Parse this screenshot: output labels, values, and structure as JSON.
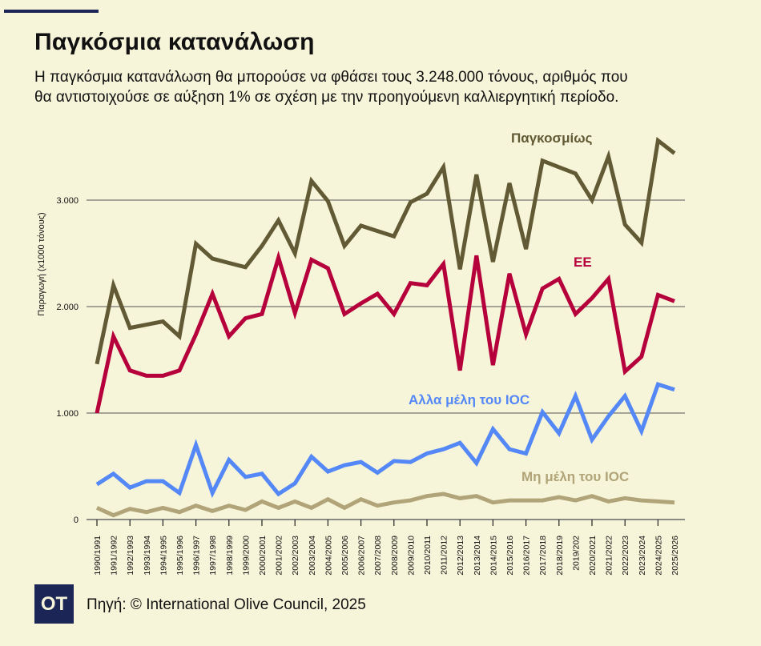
{
  "header": {
    "title": "Παγκόσμια κατανάλωση",
    "subtitle": "Η παγκόσμια κατανάλωση θα μπορούσε να φθάσει τους 3.248.000 τόνους, αριθμός που θα αντιστοιχούσε σε αύξηση 1% σε σχέση με την προηγούμενη καλλιεργητική περίοδο."
  },
  "footer": {
    "logo": "OT",
    "source": "Πηγή: © International Olive Council, 2025"
  },
  "colors": {
    "background": "#f6f4d9",
    "brand": "#1b2556",
    "world": "#625a34",
    "eu": "#b5003b",
    "other_ioc": "#5588f7",
    "non_ioc": "#b0a478",
    "grid": "#555555"
  },
  "chart_data": {
    "type": "line",
    "title": "Παγκόσμια κατανάλωση",
    "xlabel": "",
    "ylabel": "Παραγωγή (x1000 τόνους)",
    "ylim": [
      0,
      3700
    ],
    "yticks": [
      0,
      1000,
      2000,
      3000
    ],
    "ytick_labels": [
      "0",
      "1.000",
      "2.000",
      "3.000"
    ],
    "grid": true,
    "categories": [
      "1990/1991",
      "1991/1992",
      "1992/1993",
      "1993/1994",
      "1994/1995",
      "1995/1996",
      "1996/1997",
      "1997/1998",
      "1998/1999",
      "1999/2000",
      "2000/2001",
      "2001/2002",
      "2002/2003",
      "2003/2004",
      "2004/2005",
      "2005/2006",
      "2006/2007",
      "2007/2008",
      "2008/2009",
      "2009/2010",
      "2010/2011",
      "2011/2012",
      "2012/2013",
      "2013/2014",
      "2014/2015",
      "2015/2016",
      "2016/2017",
      "2017/2018",
      "2018/2019",
      "2019/202",
      "2020/2021",
      "2021/2022",
      "2022/2023",
      "2023/2024",
      "2024/2025",
      "2025/2026"
    ],
    "series": [
      {
        "key": "world",
        "name": "Παγκοσμίως",
        "values": [
          1460,
          2200,
          1800,
          1830,
          1860,
          1720,
          2590,
          2450,
          2410,
          2370,
          2570,
          2810,
          2500,
          3180,
          2990,
          2570,
          2760,
          2710,
          2660,
          2980,
          3060,
          3310,
          2350,
          3240,
          2420,
          3160,
          2540,
          3370,
          3310,
          3250,
          3000,
          3410,
          2770,
          2600,
          3560,
          3440
        ]
      },
      {
        "key": "eu",
        "name": "ΕΕ",
        "values": [
          1000,
          1720,
          1400,
          1350,
          1350,
          1400,
          1740,
          2120,
          1720,
          1890,
          1930,
          2460,
          1940,
          2440,
          2360,
          1930,
          2030,
          2120,
          1930,
          2220,
          2200,
          2400,
          1400,
          2480,
          1450,
          2310,
          1740,
          2170,
          2260,
          1930,
          2080,
          2260,
          1390,
          1530,
          2110,
          2050
        ]
      },
      {
        "key": "other_ioc",
        "name": "Αλλα μέλη του IOC",
        "values": [
          330,
          430,
          300,
          360,
          360,
          250,
          700,
          250,
          560,
          400,
          430,
          240,
          340,
          590,
          450,
          510,
          540,
          440,
          550,
          540,
          620,
          660,
          720,
          530,
          850,
          660,
          620,
          1010,
          810,
          1160,
          750,
          970,
          1160,
          830,
          1270,
          1220
        ]
      },
      {
        "key": "non_ioc",
        "name": "Μη μέλη του IOC",
        "values": [
          110,
          40,
          100,
          70,
          110,
          70,
          130,
          80,
          130,
          90,
          170,
          110,
          170,
          110,
          190,
          110,
          190,
          130,
          160,
          180,
          220,
          240,
          200,
          220,
          160,
          180,
          180,
          180,
          210,
          180,
          220,
          170,
          200,
          180,
          170,
          160
        ]
      }
    ]
  }
}
